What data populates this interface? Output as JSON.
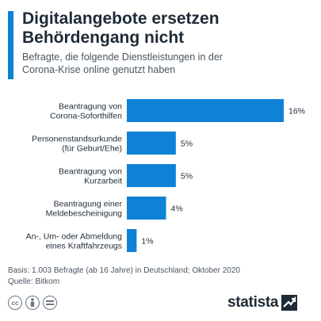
{
  "header": {
    "title_line1": "Digitalangebote ersetzen",
    "title_line2": "Behördengang nicht",
    "subtitle_line1": "Befragte, die folgende Dienstleistungen in der",
    "subtitle_line2": "Corona-Krise online genutzt haben"
  },
  "chart_data": {
    "type": "bar",
    "orientation": "horizontal",
    "categories": [
      [
        "Beantragung von",
        "Corona-Soforthilfen"
      ],
      [
        "Personenstandsurkunde",
        "(für Geburt/Ehe)"
      ],
      [
        "Beantragung von",
        "Kurzarbeit"
      ],
      [
        "Beantragung einer",
        "Meldebescheinigung"
      ],
      [
        "An-, Um- oder Abmeldung",
        "eines Kraftfahrzeugs"
      ]
    ],
    "values": [
      16,
      5,
      5,
      4,
      1
    ],
    "value_labels": [
      "16%",
      "5%",
      "5%",
      "4%",
      "1%"
    ],
    "unit": "%",
    "xlim": [
      0,
      16
    ],
    "grid": false,
    "bar_color": "#0e82d6"
  },
  "footer": {
    "basis": "Basis: 1.003 Befragte (ab 16 Jahre) in Deutschland; Oktober 2020",
    "source": "Quelle: Bitkom"
  },
  "icons": [
    "cc-icon",
    "by-icon",
    "nd-icon"
  ],
  "brand": {
    "name": "statista"
  }
}
